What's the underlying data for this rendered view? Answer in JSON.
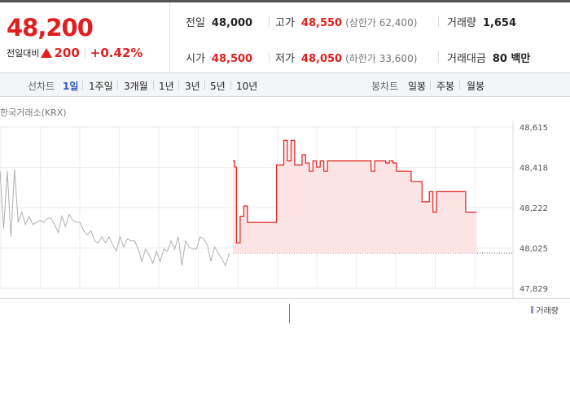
{
  "price": {
    "current": "48,200",
    "change_label": "전일대비",
    "change_value": "200",
    "change_pct": "+0.42%"
  },
  "stats": {
    "prev_label": "전일",
    "prev_value": "48,000",
    "high_label": "고가",
    "high_value": "48,550",
    "upper_limit": "(상한가 62,400)",
    "volume_label": "거래량",
    "volume_value": "1,654",
    "open_label": "시가",
    "open_value": "48,500",
    "low_label": "저가",
    "low_value": "48,050",
    "lower_limit": "(하한가 33,600)",
    "amount_label": "거래대금",
    "amount_value": "80 백만"
  },
  "nav": {
    "line_chart_label": "선차트",
    "periods": [
      "1일",
      "1주일",
      "3개월",
      "1년",
      "3년",
      "5년",
      "10년"
    ],
    "active_period": "1일",
    "candle_label": "봉차트",
    "candles": [
      "일봉",
      "주봉",
      "월봉"
    ]
  },
  "exchange": "한국거래소(KRX)",
  "legend": {
    "volume": "거래량"
  },
  "colors": {
    "up": "#e02020",
    "prev_day": "#b0b0b0",
    "fill": "#fde4e4",
    "active": "#2b55c9",
    "volume": "#a08bd0"
  },
  "chart_data": {
    "type": "line",
    "yticks": [
      "48,615",
      "48,418",
      "48,222",
      "48,025",
      "47,829"
    ],
    "ylim": [
      47829,
      48615
    ],
    "baseline": 48000,
    "series": [
      {
        "x": [
          0,
          1,
          2,
          3,
          4,
          5,
          6,
          7,
          8,
          9,
          10,
          11,
          12,
          13,
          14,
          15,
          16,
          17,
          18,
          19,
          20,
          21,
          22,
          23,
          24,
          25,
          26,
          27,
          28,
          29,
          30,
          31,
          32,
          33,
          34,
          35,
          36,
          37,
          38,
          39,
          40,
          41,
          42,
          43,
          44,
          45,
          46,
          47,
          48,
          49,
          50,
          51,
          52,
          53,
          54,
          55,
          56,
          57,
          58,
          59,
          60,
          61,
          62,
          63
        ],
        "y": [
          48400,
          48120,
          48400,
          48080,
          48410,
          48150,
          48200,
          48140,
          48180,
          48140,
          48150,
          48160,
          48150,
          48170,
          48170,
          48140,
          48100,
          48180,
          48130,
          48190,
          48160,
          48150,
          48150,
          48110,
          48090,
          48110,
          48060,
          48050,
          48080,
          48050,
          48080,
          48040,
          48010,
          48080,
          48030,
          48070,
          48060,
          48060,
          48020,
          47960,
          48020,
          47990,
          47950,
          48010,
          47960,
          48020,
          48010,
          48060,
          48020,
          48080,
          47940,
          48060,
          48030,
          48020,
          48020,
          48080,
          48070,
          48040,
          47960,
          48030,
          48000,
          47970,
          47940,
          48000
        ]
      },
      {
        "x": [
          64,
          64.5,
          65,
          66,
          67,
          68,
          69,
          70,
          71,
          72,
          73,
          74,
          75,
          76,
          77,
          78,
          79,
          80,
          81,
          82,
          83,
          84,
          85,
          86,
          87,
          88,
          89,
          90,
          91,
          92,
          93,
          94,
          95,
          96,
          97,
          98,
          99,
          100,
          101,
          102,
          103,
          104,
          105,
          106,
          107,
          108,
          109,
          110,
          111,
          112,
          113,
          114,
          115,
          116,
          117,
          118,
          119,
          120,
          121,
          122,
          123,
          124,
          125,
          126,
          127,
          128,
          129,
          130,
          131
        ],
        "y": [
          48450,
          48420,
          48050,
          48180,
          48230,
          48150,
          48150,
          48150,
          48150,
          48150,
          48150,
          48150,
          48150,
          48430,
          48430,
          48550,
          48450,
          48550,
          48430,
          48430,
          48480,
          48440,
          48400,
          48450,
          48420,
          48450,
          48400,
          48450,
          48450,
          48450,
          48450,
          48450,
          48450,
          48450,
          48450,
          48450,
          48450,
          48450,
          48450,
          48400,
          48450,
          48450,
          48450,
          48440,
          48450,
          48440,
          48400,
          48400,
          48400,
          48400,
          48350,
          48350,
          48350,
          48250,
          48250,
          48300,
          48200,
          48300,
          48300,
          48300,
          48300,
          48300,
          48300,
          48300,
          48300,
          48200,
          48200,
          48200,
          48200
        ]
      }
    ]
  }
}
